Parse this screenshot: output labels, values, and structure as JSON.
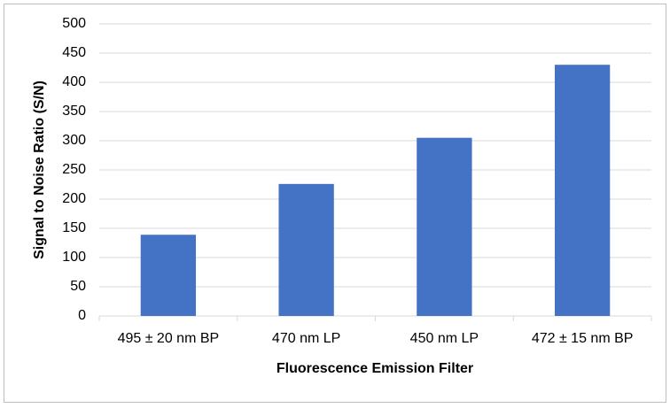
{
  "chart_data": {
    "type": "bar",
    "categories": [
      "495 ± 20 nm BP",
      "470 nm LP",
      "450 nm LP",
      "472 ± 15 nm BP"
    ],
    "values": [
      139,
      226,
      305,
      430
    ],
    "color": "#4472c4",
    "x_label": "Fluorescence Emission Filter",
    "y_label": "Signal to Noise Ratio (S/N)",
    "ylim": [
      0,
      500
    ],
    "yticks": [
      0,
      50,
      100,
      150,
      200,
      250,
      300,
      350,
      400,
      450,
      500
    ],
    "grid": true
  }
}
